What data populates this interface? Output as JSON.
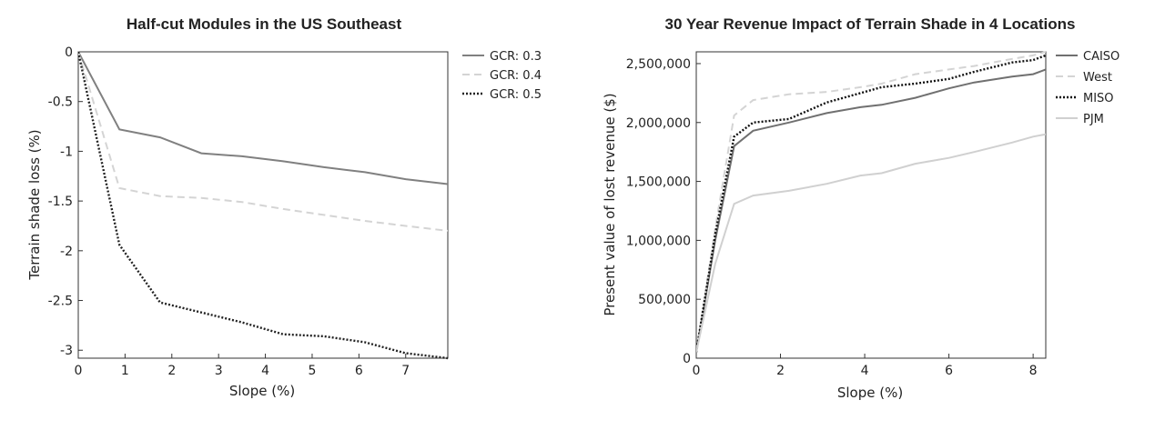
{
  "charts": [
    {
      "title": "Half-cut Modules in the US Southeast",
      "xlabel": "Slope (%)",
      "ylabel": "Terrain shade loss (%)",
      "x_ticks": [
        "0",
        "1",
        "2",
        "3",
        "4",
        "5",
        "6",
        "7"
      ],
      "y_ticks": [
        "0",
        "-0.5",
        "-1",
        "-1.5",
        "-2",
        "-2.5",
        "-3"
      ],
      "legend": [
        "GCR: 0.3",
        "GCR: 0.4",
        "GCR: 0.5"
      ]
    },
    {
      "title": "30 Year Revenue Impact of Terrain Shade in 4 Locations",
      "xlabel": "Slope (%)",
      "ylabel": "Present value of lost revenue ($)",
      "x_ticks": [
        "0",
        "2",
        "4",
        "6",
        "8"
      ],
      "y_ticks": [
        "0",
        "500,000",
        "1,000,000",
        "1,500,000",
        "2,000,000",
        "2,500,000"
      ],
      "legend": [
        "CAISO",
        "West",
        "MISO",
        "PJM"
      ]
    }
  ],
  "series_styles": [
    [
      {
        "color": "#808080",
        "dash": "solid"
      },
      {
        "color": "#d4d4d4",
        "dash": "dashed"
      },
      {
        "color": "#222222",
        "dash": "dotted"
      }
    ],
    [
      {
        "color": "#707070",
        "dash": "solid"
      },
      {
        "color": "#d4d4d4",
        "dash": "dashed"
      },
      {
        "color": "#111111",
        "dash": "dotted"
      },
      {
        "color": "#d0d0d0",
        "dash": "solid"
      }
    ]
  ],
  "chart_data": [
    {
      "type": "line",
      "xlim": [
        0,
        7.9
      ],
      "ylim": [
        -3.08,
        0
      ],
      "grid": false,
      "legend_position": "outside-right",
      "series": [
        {
          "name": "GCR: 0.3",
          "x": [
            0,
            0.88,
            1.75,
            2.63,
            3.5,
            4.38,
            5.25,
            6.13,
            7,
            7.9
          ],
          "y": [
            0,
            -0.78,
            -0.86,
            -1.02,
            -1.05,
            -1.1,
            -1.16,
            -1.21,
            -1.28,
            -1.33
          ]
        },
        {
          "name": "GCR: 0.4",
          "x": [
            0,
            0.88,
            1.75,
            2.63,
            3.5,
            4.38,
            5.25,
            6.13,
            7,
            7.9
          ],
          "y": [
            0,
            -1.37,
            -1.45,
            -1.47,
            -1.51,
            -1.58,
            -1.64,
            -1.7,
            -1.75,
            -1.8
          ]
        },
        {
          "name": "GCR: 0.5",
          "x": [
            0,
            0.88,
            1.75,
            2.63,
            3.5,
            4.38,
            5.25,
            6.13,
            7,
            7.9
          ],
          "y": [
            0,
            -1.94,
            -2.52,
            -2.62,
            -2.72,
            -2.84,
            -2.86,
            -2.92,
            -3.03,
            -3.08
          ]
        }
      ]
    },
    {
      "type": "line",
      "xlim": [
        0,
        8.3
      ],
      "ylim": [
        0,
        2600000
      ],
      "grid": false,
      "legend_position": "outside-right",
      "series": [
        {
          "name": "CAISO",
          "x": [
            0,
            0.45,
            0.9,
            1.35,
            2.2,
            3.1,
            3.9,
            4.4,
            5.2,
            6,
            6.6,
            7.5,
            8,
            8.3
          ],
          "y": [
            50000,
            1000000,
            1800000,
            1930000,
            2000000,
            2080000,
            2130000,
            2150000,
            2210000,
            2290000,
            2340000,
            2390000,
            2410000,
            2450000
          ]
        },
        {
          "name": "West",
          "x": [
            0,
            0.45,
            0.9,
            1.35,
            2.2,
            3.1,
            3.9,
            4.4,
            5.2,
            6,
            6.6,
            7.5,
            8,
            8.3
          ],
          "y": [
            50000,
            1100000,
            2060000,
            2190000,
            2240000,
            2260000,
            2300000,
            2330000,
            2410000,
            2450000,
            2480000,
            2540000,
            2570000,
            2600000
          ]
        },
        {
          "name": "MISO",
          "x": [
            0,
            0.45,
            0.9,
            1.35,
            2.2,
            3.1,
            3.9,
            4.4,
            5.2,
            6,
            6.6,
            7.5,
            8,
            8.3
          ],
          "y": [
            50000,
            1050000,
            1880000,
            2000000,
            2030000,
            2170000,
            2250000,
            2300000,
            2330000,
            2370000,
            2430000,
            2510000,
            2530000,
            2570000
          ]
        },
        {
          "name": "PJM",
          "x": [
            0,
            0.45,
            0.9,
            1.35,
            2.2,
            3.1,
            3.9,
            4.4,
            5.2,
            6,
            6.6,
            7.5,
            8,
            8.3
          ],
          "y": [
            50000,
            800000,
            1310000,
            1380000,
            1420000,
            1480000,
            1550000,
            1570000,
            1650000,
            1700000,
            1750000,
            1830000,
            1880000,
            1900000
          ]
        }
      ]
    }
  ]
}
